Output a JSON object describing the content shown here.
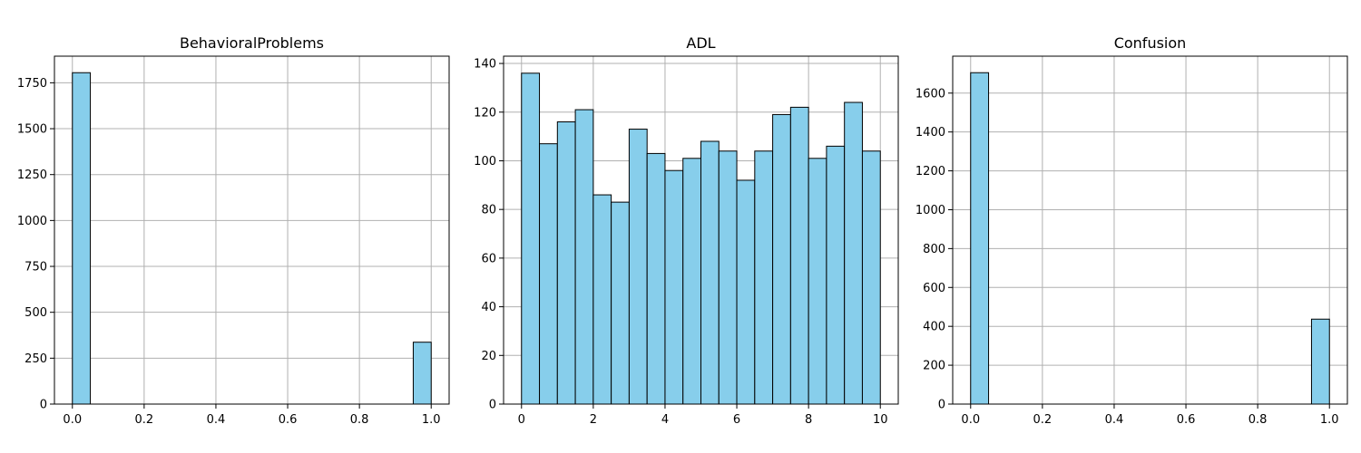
{
  "chart_data": [
    {
      "type": "bar",
      "title": "BehavioralProblems",
      "bins": 20,
      "bin_range": [
        0,
        1
      ],
      "counts": [
        1805,
        0,
        0,
        0,
        0,
        0,
        0,
        0,
        0,
        0,
        0,
        0,
        0,
        0,
        0,
        0,
        0,
        0,
        0,
        337
      ],
      "xlim": [
        -0.05,
        1.05
      ],
      "ylim": [
        0,
        1895
      ],
      "xticks": [
        0.0,
        0.2,
        0.4,
        0.6,
        0.8,
        1.0
      ],
      "xtick_labels": [
        "0.0",
        "0.2",
        "0.4",
        "0.6",
        "0.8",
        "1.0"
      ],
      "yticks": [
        0,
        250,
        500,
        750,
        1000,
        1250,
        1500,
        1750
      ],
      "ytick_labels": [
        "0",
        "250",
        "500",
        "750",
        "1000",
        "1250",
        "1500",
        "1750"
      ],
      "grid": true
    },
    {
      "type": "bar",
      "title": "ADL",
      "bins": 20,
      "bin_range": [
        0,
        10
      ],
      "counts": [
        136,
        107,
        116,
        121,
        86,
        83,
        113,
        103,
        96,
        101,
        108,
        104,
        92,
        104,
        119,
        122,
        101,
        106,
        124,
        104
      ],
      "xlim": [
        -0.5,
        10.5
      ],
      "ylim": [
        0,
        143
      ],
      "xticks": [
        0,
        2,
        4,
        6,
        8,
        10
      ],
      "xtick_labels": [
        "0",
        "2",
        "4",
        "6",
        "8",
        "10"
      ],
      "yticks": [
        0,
        20,
        40,
        60,
        80,
        100,
        120,
        140
      ],
      "ytick_labels": [
        "0",
        "20",
        "40",
        "60",
        "80",
        "100",
        "120",
        "140"
      ],
      "grid": true
    },
    {
      "type": "bar",
      "title": "Confusion",
      "bins": 20,
      "bin_range": [
        0,
        1
      ],
      "counts": [
        1705,
        0,
        0,
        0,
        0,
        0,
        0,
        0,
        0,
        0,
        0,
        0,
        0,
        0,
        0,
        0,
        0,
        0,
        0,
        437
      ],
      "xlim": [
        -0.05,
        1.05
      ],
      "ylim": [
        0,
        1790
      ],
      "xticks": [
        0.0,
        0.2,
        0.4,
        0.6,
        0.8,
        1.0
      ],
      "xtick_labels": [
        "0.0",
        "0.2",
        "0.4",
        "0.6",
        "0.8",
        "1.0"
      ],
      "yticks": [
        0,
        200,
        400,
        600,
        800,
        1000,
        1200,
        1400,
        1600
      ],
      "ytick_labels": [
        "0",
        "200",
        "400",
        "600",
        "800",
        "1000",
        "1200",
        "1400",
        "1600"
      ],
      "grid": true
    }
  ],
  "colors": {
    "bar_fill": "#87ceeb",
    "bar_edge": "#000000",
    "grid": "#b0b0b0"
  }
}
